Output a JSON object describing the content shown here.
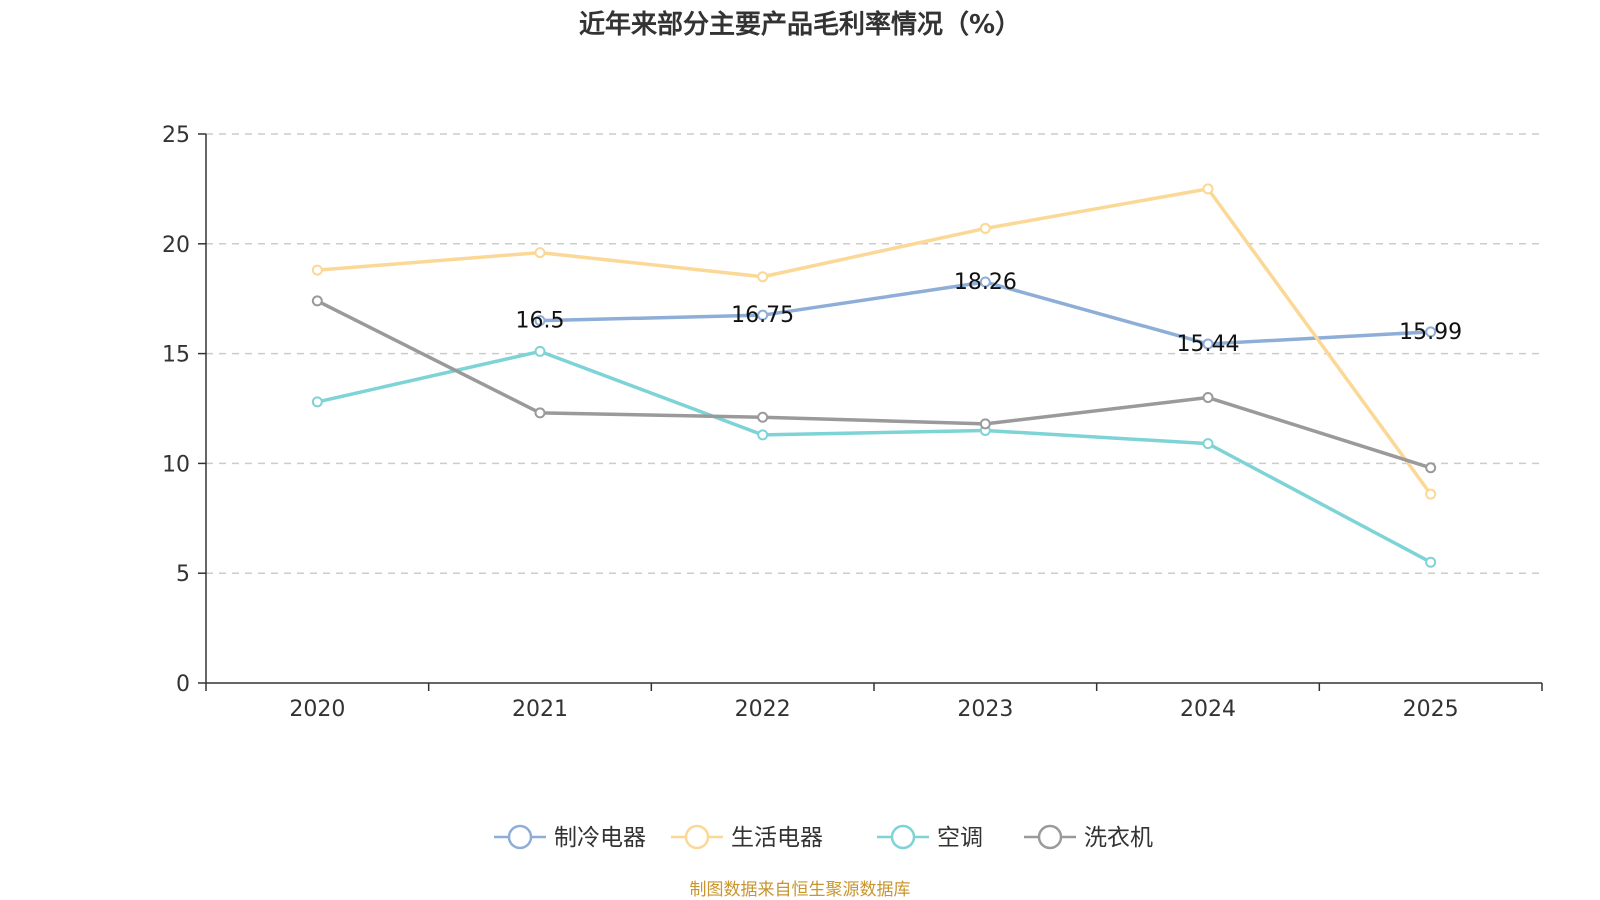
{
  "chart_data": {
    "type": "line",
    "title": "近年来部分主要产品毛利率情况（%）",
    "categories": [
      "2020",
      "2021",
      "2022",
      "2023",
      "2024",
      "2025"
    ],
    "ylim": [
      0,
      25
    ],
    "yticks": [
      0,
      5,
      10,
      15,
      20,
      25
    ],
    "grid": true,
    "legend_position": "bottom",
    "series": [
      {
        "name": "制冷电器",
        "color": "#8eaed8",
        "values": [
          null,
          16.5,
          16.75,
          18.26,
          15.44,
          15.99
        ],
        "labels": [
          "",
          "16.5",
          "16.75",
          "18.26",
          "15.44",
          "15.99"
        ]
      },
      {
        "name": "生活电器",
        "color": "#fbd896",
        "values": [
          18.8,
          19.6,
          18.5,
          20.7,
          22.5,
          8.6
        ]
      },
      {
        "name": "空调",
        "color": "#7ed3d6",
        "values": [
          12.8,
          15.1,
          11.3,
          11.5,
          10.9,
          5.5
        ]
      },
      {
        "name": "洗衣机",
        "color": "#9a9a9a",
        "values": [
          17.4,
          12.3,
          12.1,
          11.8,
          13.0,
          9.8
        ]
      }
    ]
  },
  "source": {
    "text": "制图数据来自恒生聚源数据库",
    "color": "#c8952e"
  }
}
